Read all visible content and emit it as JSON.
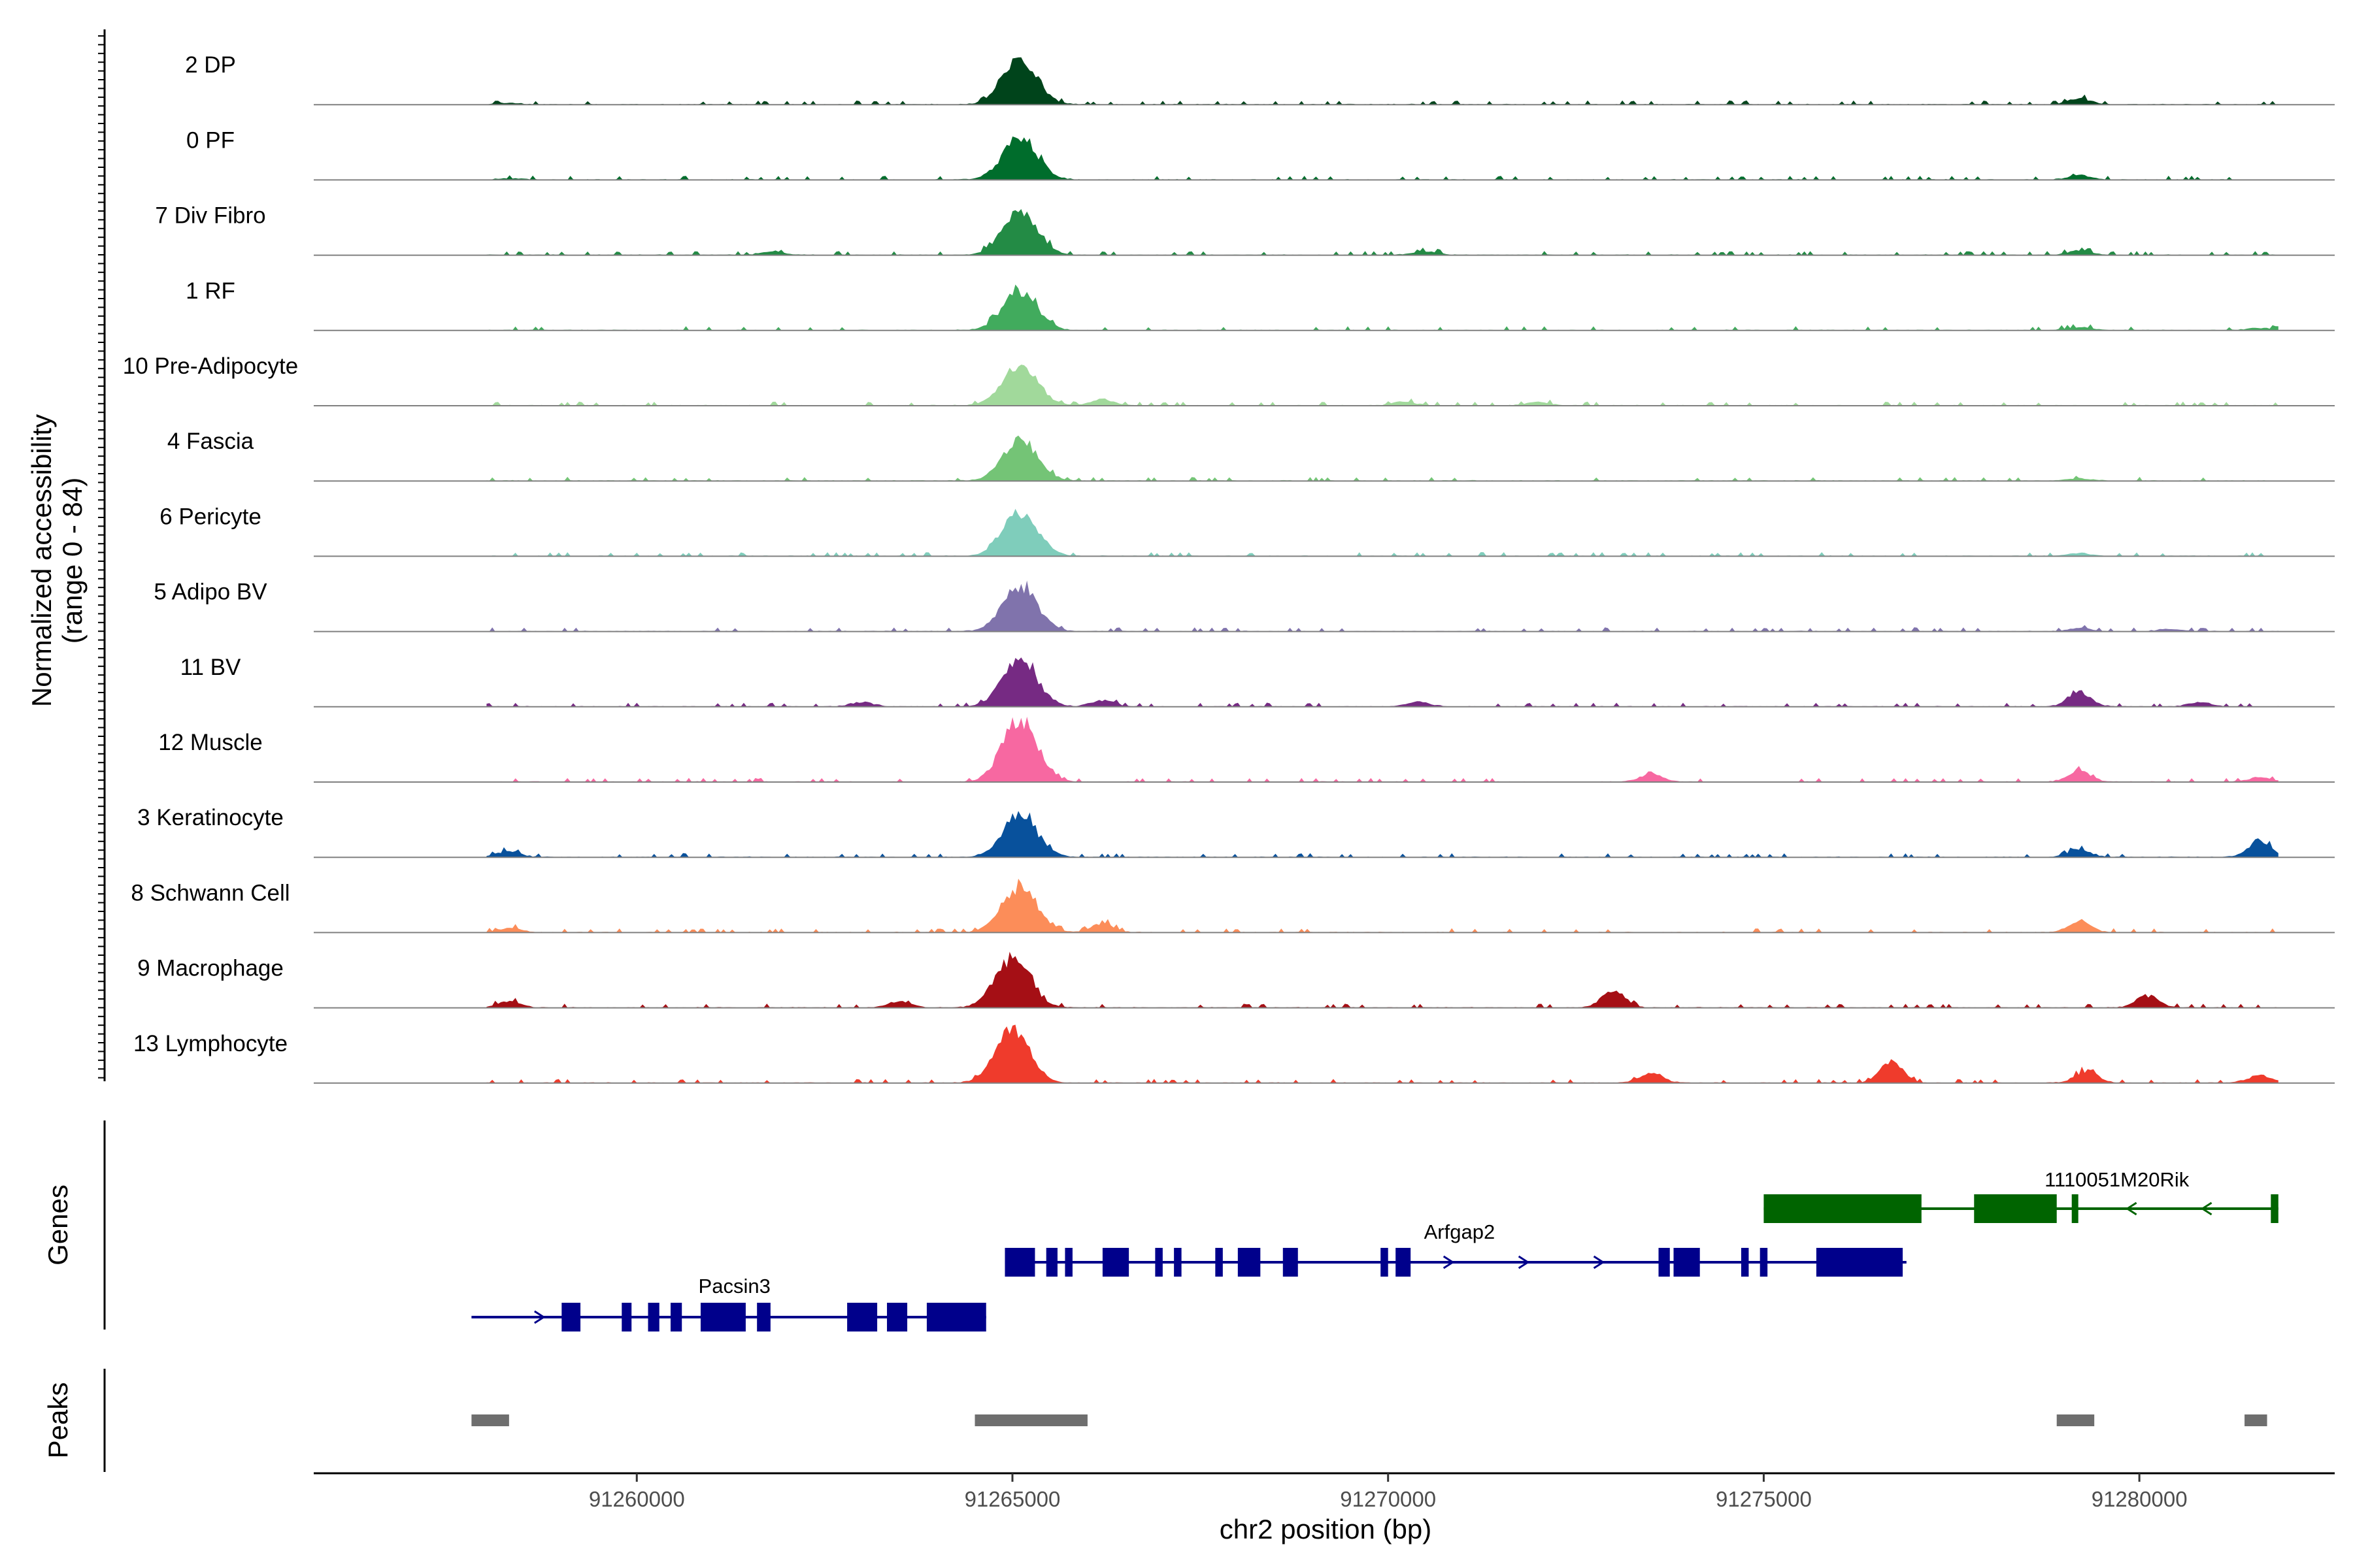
{
  "chart_data": {
    "type": "area",
    "title": "",
    "ylabel": "Normalized accessibility",
    "ylabel_range": "(range 0 - 84)",
    "ylim": [
      0,
      84
    ],
    "xlabel": "chr2 position (bp)",
    "xlim": [
      91255700,
      91282600
    ],
    "xticks": [
      {
        "value": 91260000,
        "label": "91260000"
      },
      {
        "value": 91265000,
        "label": "91265000"
      },
      {
        "value": 91270000,
        "label": "91270000"
      },
      {
        "value": 91275000,
        "label": "91275000"
      },
      {
        "value": 91280000,
        "label": "91280000"
      }
    ],
    "series": [
      {
        "name": "2 DP",
        "color": "#00441b",
        "peaks": [
          [
            91265100,
            58
          ],
          [
            91279200,
            8
          ],
          [
            91258300,
            2
          ]
        ]
      },
      {
        "name": "0 PF",
        "color": "#006d2c",
        "peaks": [
          [
            91265100,
            55
          ],
          [
            91279200,
            6
          ],
          [
            91258300,
            2
          ]
        ]
      },
      {
        "name": "7 Div Fibro",
        "color": "#238b45",
        "peaks": [
          [
            91265100,
            60
          ],
          [
            91279200,
            6
          ],
          [
            91261800,
            5
          ],
          [
            91270500,
            5
          ]
        ]
      },
      {
        "name": "1 RF",
        "color": "#41ab5d",
        "peaks": [
          [
            91265100,
            52
          ],
          [
            91279200,
            4
          ],
          [
            91281600,
            3
          ]
        ]
      },
      {
        "name": "10 Pre-Adipocyte",
        "color": "#a1d99b",
        "peaks": [
          [
            91265100,
            55
          ],
          [
            91266200,
            8
          ],
          [
            91270200,
            5
          ],
          [
            91272000,
            5
          ]
        ]
      },
      {
        "name": "4 Fascia",
        "color": "#74c476",
        "peaks": [
          [
            91265100,
            55
          ],
          [
            91279200,
            3
          ]
        ]
      },
      {
        "name": "6 Pericyte",
        "color": "#7fcdbb",
        "peaks": [
          [
            91265100,
            58
          ],
          [
            91279200,
            4
          ]
        ]
      },
      {
        "name": "5 Adipo BV",
        "color": "#8073ac",
        "peaks": [
          [
            91265100,
            60
          ],
          [
            91279200,
            4
          ],
          [
            91280400,
            3
          ]
        ]
      },
      {
        "name": "11 BV",
        "color": "#762a83",
        "peaks": [
          [
            91265100,
            62
          ],
          [
            91279200,
            20
          ],
          [
            91266200,
            8
          ],
          [
            91263000,
            6
          ],
          [
            91270400,
            6
          ],
          [
            91280800,
            6
          ]
        ]
      },
      {
        "name": "12 Muscle",
        "color": "#f768a1",
        "peaks": [
          [
            91265100,
            84
          ],
          [
            91279200,
            14
          ],
          [
            91273500,
            10
          ],
          [
            91281600,
            6
          ]
        ]
      },
      {
        "name": "3 Keratinocyte",
        "color": "#08519c",
        "peaks": [
          [
            91265100,
            55
          ],
          [
            91281600,
            22
          ],
          [
            91279200,
            10
          ],
          [
            91258300,
            8
          ]
        ]
      },
      {
        "name": "8 Schwann Cell",
        "color": "#fc8d59",
        "peaks": [
          [
            91265100,
            60
          ],
          [
            91266200,
            12
          ],
          [
            91279200,
            14
          ],
          [
            91258300,
            6
          ]
        ]
      },
      {
        "name": "9 Macrophage",
        "color": "#a50f15",
        "peaks": [
          [
            91265000,
            66
          ],
          [
            91280100,
            16
          ],
          [
            91273000,
            24
          ],
          [
            91263500,
            8
          ],
          [
            91258300,
            8
          ]
        ]
      },
      {
        "name": "13 Lymphocyte",
        "color": "#ef3b2c",
        "peaks": [
          [
            91265000,
            70
          ],
          [
            91276700,
            28
          ],
          [
            91273500,
            14
          ],
          [
            91279300,
            16
          ],
          [
            91281600,
            10
          ]
        ]
      }
    ],
    "genes_panel_label": "Genes",
    "genes": [
      {
        "name": "Pacsin3",
        "strand": "+",
        "start": 91257800,
        "end": 91264650,
        "color": "#00008b",
        "exons": [
          [
            91259000,
            91259250
          ],
          [
            91259800,
            91259930
          ],
          [
            91260150,
            91260300
          ],
          [
            91260450,
            91260600
          ],
          [
            91260850,
            91261450
          ],
          [
            91261600,
            91261780
          ],
          [
            91262800,
            91263200
          ],
          [
            91263330,
            91263600
          ],
          [
            91263860,
            91264650
          ]
        ]
      },
      {
        "name": "Arfgap2",
        "strand": "+",
        "start": 91264900,
        "end": 91276900,
        "color": "#00008b",
        "exons": [
          [
            91264900,
            91265300
          ],
          [
            91265450,
            91265600
          ],
          [
            91265700,
            91265800
          ],
          [
            91266200,
            91266550
          ],
          [
            91266900,
            91267000
          ],
          [
            91267150,
            91267250
          ],
          [
            91267700,
            91267800
          ],
          [
            91268000,
            91268300
          ],
          [
            91268600,
            91268800
          ],
          [
            91269900,
            91270000
          ],
          [
            91270100,
            91270300
          ],
          [
            91273600,
            91273750
          ],
          [
            91273800,
            91274150
          ],
          [
            91274700,
            91274800
          ],
          [
            91274950,
            91275050
          ],
          [
            91275700,
            91276850
          ]
        ]
      },
      {
        "name": "1110051M20Rik",
        "strand": "-",
        "start": 91275000,
        "end": 91281850,
        "color": "#006400",
        "exons": [
          [
            91275000,
            91277100
          ],
          [
            91277800,
            91278900
          ],
          [
            91279100,
            91279150
          ],
          [
            91281750,
            91281850
          ]
        ]
      }
    ],
    "peaks_panel_label": "Peaks",
    "peaks": [
      [
        91257800,
        91258300
      ],
      [
        91264500,
        91266000
      ],
      [
        91278900,
        91279400
      ],
      [
        91281400,
        91281700
      ]
    ]
  }
}
